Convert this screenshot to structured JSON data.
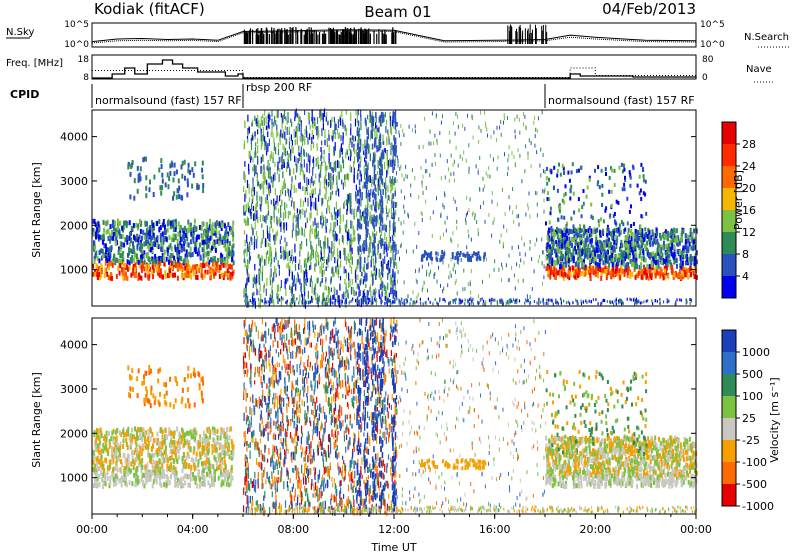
{
  "header": {
    "station": "Kodiak (fitACF)",
    "beam": "Beam 01",
    "date": "04/Feb/2013"
  },
  "chart_data": [
    {
      "type": "line",
      "panel": "noise",
      "left_label": "N.Sky",
      "right_label": "N.Search",
      "left_ticks": [
        "10^5",
        "10^0"
      ],
      "right_ticks": [
        "10^5",
        "10^0"
      ],
      "x": [
        0,
        1,
        2,
        3,
        4,
        5,
        6,
        8,
        10,
        12,
        14,
        16,
        18,
        19,
        20,
        22,
        24
      ],
      "sky": [
        10,
        40,
        50,
        30,
        40,
        20,
        2000,
        3000,
        5000,
        4000,
        15,
        20,
        30,
        300,
        100,
        20,
        15
      ],
      "search": [
        5,
        15,
        20,
        15,
        20,
        10,
        1000,
        1500,
        2500,
        2000,
        8,
        10,
        15,
        100,
        40,
        10,
        8
      ]
    },
    {
      "type": "line",
      "panel": "frequency",
      "left_label": "Freq. [MHz]",
      "right_label": "Nave",
      "left_ticks": [
        "18",
        "8"
      ],
      "right_ticks": [
        "80",
        "0"
      ],
      "freq_steps": [
        [
          0,
          8
        ],
        [
          0.8,
          10
        ],
        [
          1.3,
          13
        ],
        [
          1.7,
          10
        ],
        [
          2.2,
          15
        ],
        [
          2.8,
          17
        ],
        [
          3.2,
          15
        ],
        [
          3.6,
          13
        ],
        [
          4.2,
          11
        ],
        [
          5.3,
          9
        ],
        [
          5.8,
          10
        ],
        [
          6,
          8
        ],
        [
          19,
          10
        ],
        [
          19.4,
          9
        ],
        [
          21.5,
          8.5
        ],
        [
          24,
          8
        ]
      ],
      "nave": [
        [
          0,
          30
        ],
        [
          6,
          2
        ],
        [
          19,
          40
        ],
        [
          20,
          10
        ],
        [
          24,
          10
        ]
      ]
    },
    {
      "type": "table",
      "panel": "cpid",
      "label": "CPID",
      "segments": [
        {
          "start": 0,
          "end": 6,
          "text": "normalsound (fast) 157 RF"
        },
        {
          "start": 6,
          "end": 18,
          "text": "rbsp 200 RF"
        },
        {
          "start": 18,
          "end": 24,
          "text": "normalsound (fast) 157 RF"
        }
      ]
    },
    {
      "type": "heatmap",
      "panel": "power",
      "ylabel": "Slant Range [km]",
      "yticks": [
        1000,
        2000,
        3000,
        4000
      ],
      "ylim": [
        180,
        4600
      ],
      "xlim": [
        0,
        24
      ],
      "colorbar_label": "Power [dB]",
      "colorbar_ticks": [
        "28",
        "24",
        "20",
        "16",
        "12",
        "8",
        "4"
      ],
      "colors": [
        "#0000ee",
        "#2a52be",
        "#2e8b57",
        "#7cc242",
        "#f5b800",
        "#ff6a00",
        "#ff2a00",
        "#e60000"
      ]
    },
    {
      "type": "heatmap",
      "panel": "velocity",
      "ylabel": "Slant Range [km]",
      "xlabel": "Time UT",
      "yticks": [
        1000,
        2000,
        3000,
        4000
      ],
      "ylim": [
        180,
        4600
      ],
      "xlim": [
        0,
        24
      ],
      "xticks": [
        "00:00",
        "04:00",
        "08:00",
        "12:00",
        "16:00",
        "20:00",
        "00:00"
      ],
      "colorbar_label": "Velocity [m s⁻¹]",
      "colorbar_ticks": [
        "1000",
        "500",
        "100",
        "25",
        "-25",
        "-100",
        "-500",
        "-1000"
      ],
      "colors": [
        "#1a3fb8",
        "#2e6fc9",
        "#2e8b57",
        "#7cc242",
        "#c8c8c0",
        "#f5a000",
        "#ff6a00",
        "#e60000"
      ]
    }
  ]
}
